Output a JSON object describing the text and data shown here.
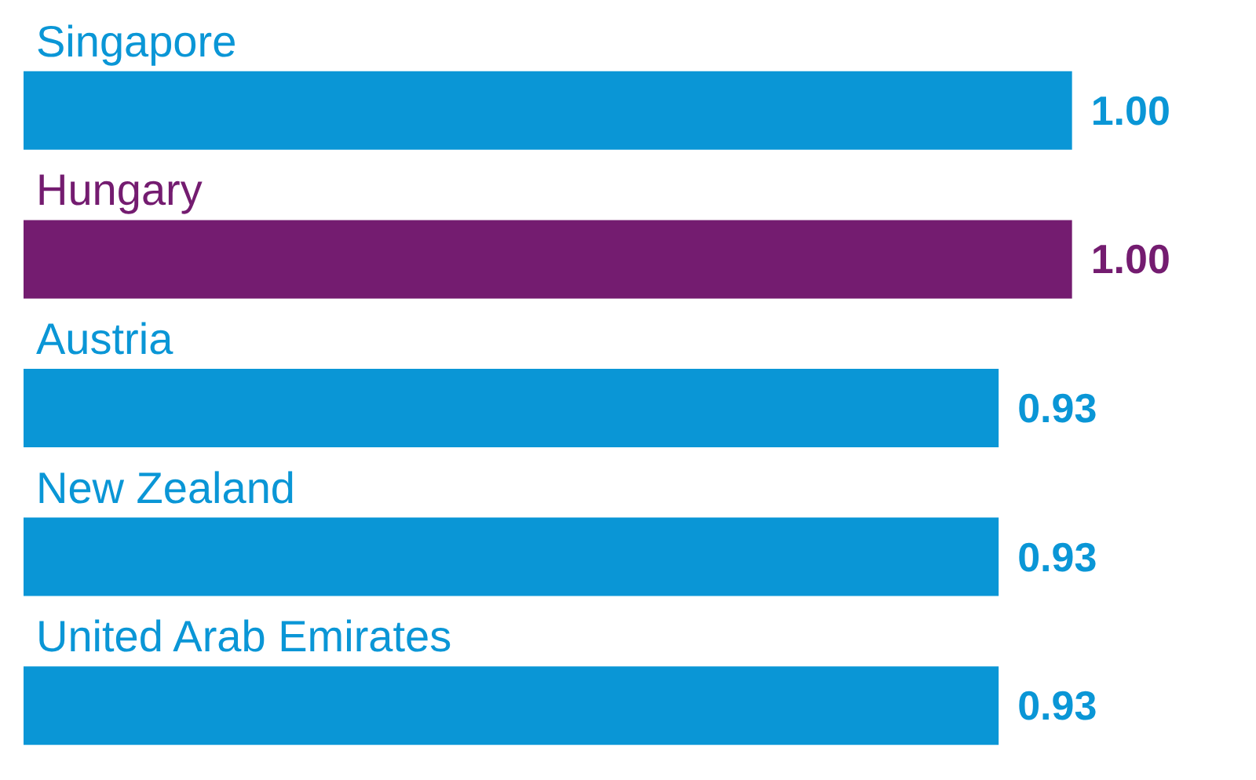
{
  "chart_data": {
    "type": "bar",
    "orientation": "horizontal",
    "categories": [
      "Singapore",
      "Hungary",
      "Austria",
      "New Zealand",
      "United Arab Emirates"
    ],
    "values": [
      1.0,
      1.0,
      0.93,
      0.93,
      0.93
    ],
    "colors": [
      "#0a96d6",
      "#741c70",
      "#0a96d6",
      "#0a96d6",
      "#0a96d6"
    ],
    "value_labels": [
      "1.00",
      "1.00",
      "0.93",
      "0.93",
      "0.93"
    ]
  }
}
